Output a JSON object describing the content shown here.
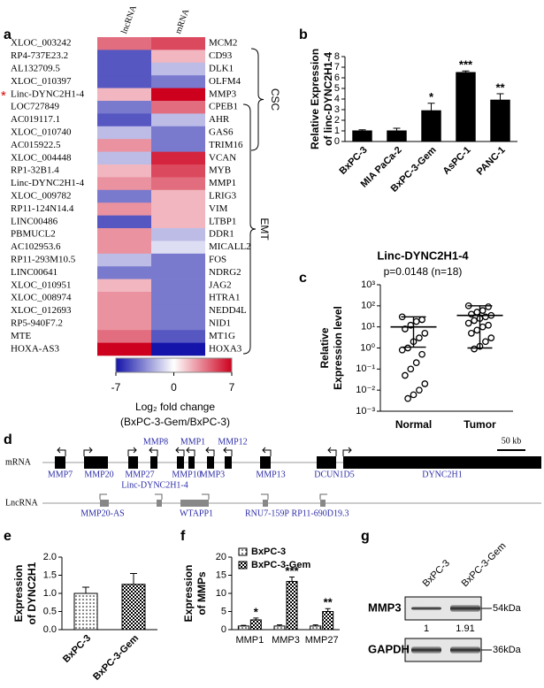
{
  "panel_labels": [
    "a",
    "b",
    "c",
    "d",
    "e",
    "f",
    "g"
  ],
  "chart_data": [
    {
      "type": "heatmap",
      "columns": [
        "lncRNA",
        "mRNA"
      ],
      "row_labels_left": [
        "XLOC_003242",
        "RP4-737E23.2",
        "AL132709.5",
        "XLOC_010397",
        "Linc-DYNC2H1-4",
        "LOC727849",
        "AC019117.1",
        "XLOC_010740",
        "AC015922.5",
        "XLOC_004448",
        "RP1-32B1.4",
        "Linc-DYNC2H1-4",
        "XLOC_009782",
        "RP11-124N14.4",
        "LINC00486",
        "PBMUCL2",
        "AC102953.6",
        "RP11-293M10.5",
        "LINC00641",
        "XLOC_010951",
        "XLOC_008974",
        "XLOC_012693",
        "RP5-940F7.2",
        "MTE",
        "HOXA-AS3"
      ],
      "row_labels_right": [
        "MCM2",
        "CD93",
        "DLK1",
        "OLFM4",
        "MMP3",
        "CPEB1",
        "AHR",
        "GAS6",
        "TRIM16",
        "VCAN",
        "MYB",
        "MMP1",
        "LRIG3",
        "VIM",
        "LTBP1",
        "DDR1",
        "MICALL2",
        "FOS",
        "NDRG2",
        "JAG2",
        "HTRA1",
        "NEDD4L",
        "NID1",
        "MT1G",
        "HOXA3"
      ],
      "values": [
        [
          4,
          5
        ],
        [
          -5,
          2
        ],
        [
          -5,
          -2
        ],
        [
          -5,
          -4
        ],
        [
          2,
          7
        ],
        [
          -4,
          4
        ],
        [
          -5,
          -2
        ],
        [
          -2,
          -4
        ],
        [
          3,
          -4
        ],
        [
          -2,
          6
        ],
        [
          2,
          5
        ],
        [
          3,
          4
        ],
        [
          -4,
          2
        ],
        [
          3,
          2
        ],
        [
          -5,
          2
        ],
        [
          3,
          -2
        ],
        [
          3,
          -1
        ],
        [
          -2,
          -4
        ],
        [
          -4,
          -4
        ],
        [
          2,
          -4
        ],
        [
          3,
          -4
        ],
        [
          3,
          -4
        ],
        [
          3,
          -4
        ],
        [
          4,
          -5
        ],
        [
          7,
          -7
        ]
      ],
      "marker": "*",
      "groups": [
        "CSC",
        "EMT"
      ],
      "zlim": [
        -7,
        7
      ],
      "zticks": [
        -7,
        0,
        7
      ],
      "colorbar_label": "Log₂ fold change",
      "colorbar_sublabel": "(BxPC-3-Gem/BxPC-3)"
    },
    {
      "type": "bar",
      "ylabel": [
        "Relative Expression",
        "of linc-DYNC2H1-4"
      ],
      "categories": [
        "BxPC-3",
        "MIA PaCa-2",
        "BxPC-3-Gem",
        "AsPC-1",
        "PANC-1"
      ],
      "values": [
        1,
        1,
        2.9,
        6.5,
        3.9
      ],
      "errors": [
        0.1,
        0.25,
        0.7,
        0.15,
        0.6
      ],
      "annotations": [
        null,
        null,
        "*",
        "***",
        "**"
      ],
      "color": "#000000",
      "ylim": [
        0,
        8
      ],
      "yticks": [
        0,
        1,
        2,
        3,
        4,
        5,
        6,
        7,
        8
      ]
    },
    {
      "type": "dot",
      "title": "Linc-DYNC2H1-4",
      "subtitle": "p=0.0148 (n=18)",
      "ylabel": [
        "Relative",
        "Expression level"
      ],
      "log_scale": true,
      "categories": [
        "Normal",
        "Tumor"
      ],
      "groups": [
        {
          "values": [
            30,
            22,
            18,
            12,
            8,
            5,
            3,
            2,
            1,
            0.8,
            0.5,
            0.2,
            0.1,
            0.05,
            0.02,
            0.01,
            0.006,
            0.004
          ],
          "mean": 10,
          "error_low": 1.1,
          "error_high": 30
        },
        {
          "values": [
            100,
            90,
            60,
            50,
            40,
            35,
            30,
            25,
            20,
            15,
            12,
            10,
            7,
            5,
            3,
            2,
            1.2,
            0.9
          ],
          "mean": 35,
          "error_low": 1,
          "error_high": 100
        }
      ],
      "ylim": [
        0.001,
        1000
      ],
      "yticks": [
        {
          "value": 0.001,
          "label": "10⁻³"
        },
        {
          "value": 0.01,
          "label": "10⁻²"
        },
        {
          "value": 0.1,
          "label": "10⁻¹"
        },
        {
          "value": 1,
          "label": "10⁰"
        },
        {
          "value": 10,
          "label": "10¹"
        },
        {
          "value": 100,
          "label": "10²"
        },
        {
          "value": 1000,
          "label": "10³"
        }
      ]
    },
    {
      "type": "bar",
      "ylabel": [
        "Expression",
        "of DYNC2H1"
      ],
      "categories": [
        "BxPC-3",
        "BxPC-3-Gem"
      ],
      "values": [
        1.0,
        1.25
      ],
      "errors": [
        0.17,
        0.3
      ],
      "patterns": [
        "dots",
        "checker"
      ],
      "ylim": [
        0,
        2
      ],
      "yticks": [
        {
          "value": 0,
          "label": "0.0"
        },
        0.5,
        {
          "value": 1,
          "label": "1.0"
        },
        1.5,
        {
          "value": 2,
          "label": "2.0"
        }
      ]
    },
    {
      "type": "bar",
      "ylabel": [
        "Expression",
        "of MMPs"
      ],
      "legend": "upper left",
      "categories": [
        "MMP1",
        "MMP3",
        "MMP27"
      ],
      "series": [
        {
          "name": "BxPC-3",
          "pattern": "dots",
          "values": [
            1,
            1,
            1
          ],
          "errors": [
            0.2,
            0.3,
            0.3
          ]
        },
        {
          "name": "BxPC-3-Gem",
          "pattern": "checker",
          "values": [
            2.7,
            13.3,
            5
          ],
          "errors": [
            0.5,
            1.2,
            0.8
          ],
          "annotations": [
            "*",
            "***",
            "**"
          ]
        }
      ],
      "ylim": [
        0,
        20
      ],
      "yticks": [
        0,
        5,
        10,
        15,
        20
      ]
    }
  ],
  "gene_map": {
    "tracks": [
      "mRNA",
      "LncRNA"
    ],
    "mrna_genes": [
      "MMP7",
      "MMP20",
      "MMP27",
      "MMP8",
      "MMP10",
      "MMP1",
      "MMP3",
      "MMP12",
      "MMP13",
      "DCUN1D5",
      "DYNC2H1"
    ],
    "lncrna_genes": [
      "Linc-DYNC2H1-4",
      "MMP20-AS",
      "WTAPP1",
      "RNU7-159P",
      "RP11-690D19.3"
    ],
    "scale": "50 kb"
  },
  "western_blot": {
    "lanes": [
      "BxPC-3",
      "BxPC-3-Gem"
    ],
    "rows": [
      {
        "name": "MMP3",
        "size": "54kDa",
        "quant": [
          1,
          1.91
        ]
      },
      {
        "name": "GAPDH",
        "size": "36kDa"
      }
    ]
  }
}
